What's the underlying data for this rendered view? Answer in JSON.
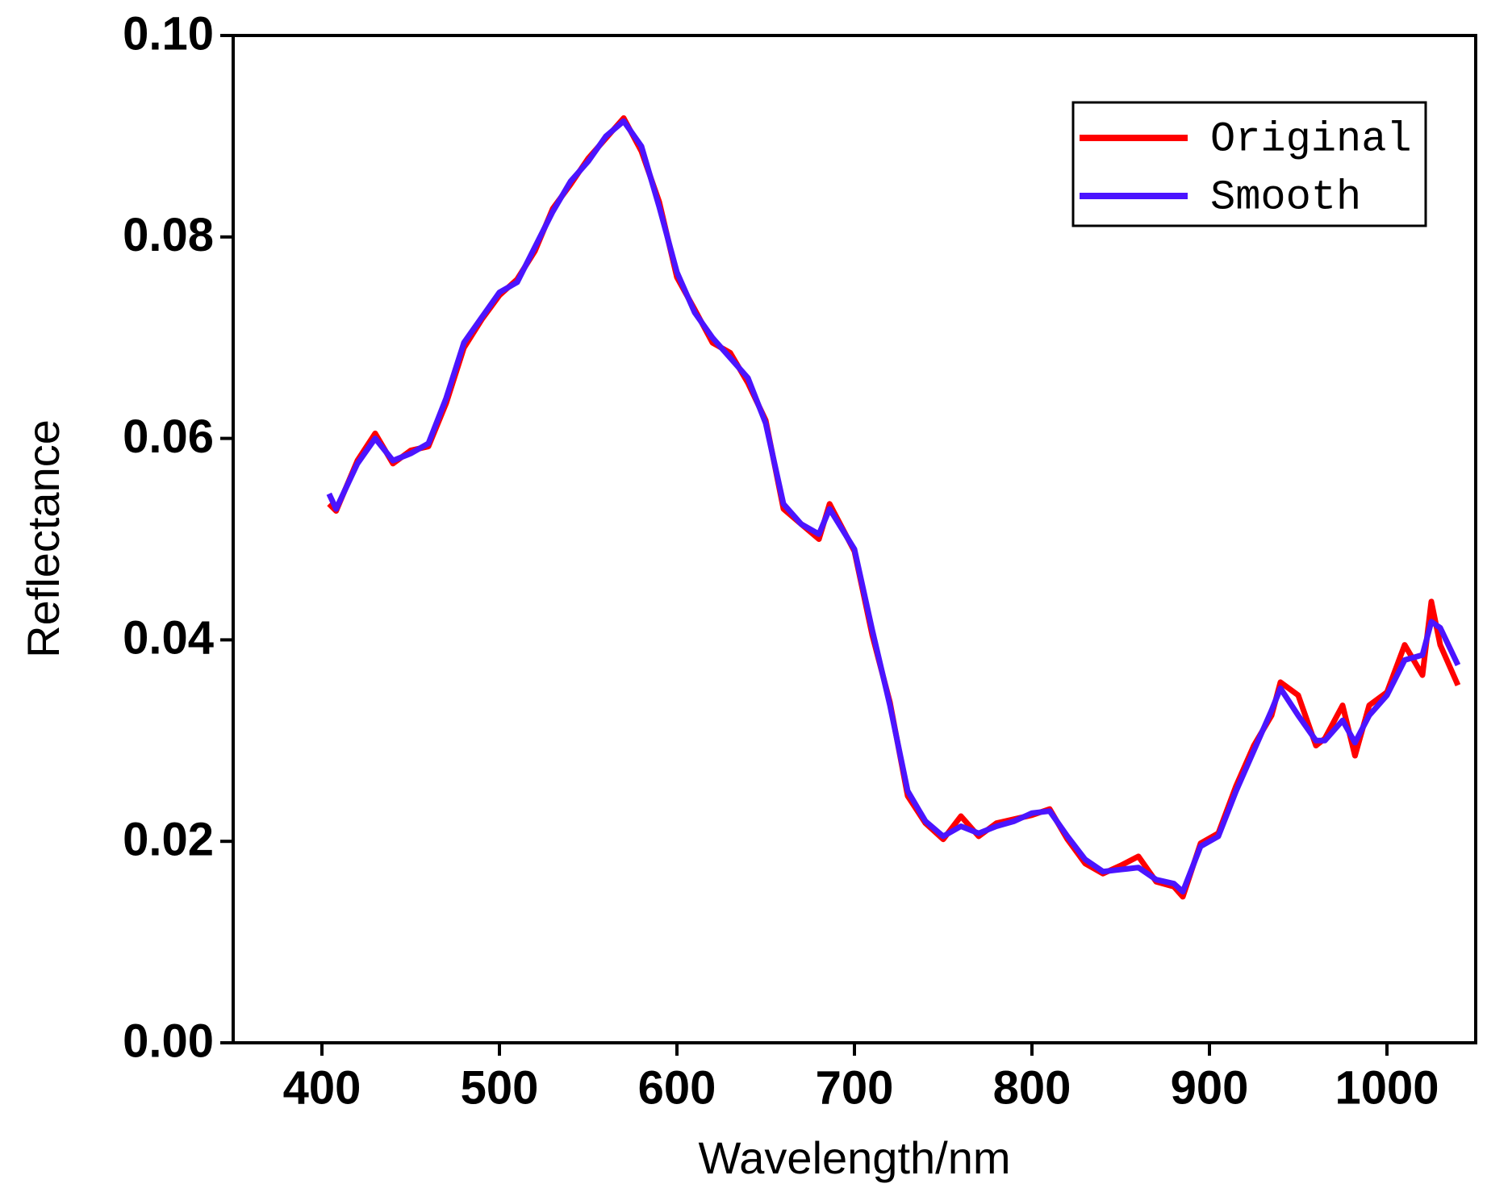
{
  "chart_data": {
    "type": "line",
    "x_label": "Wavelength/nm",
    "y_label": "Reflectance",
    "x": [
      404,
      408,
      420,
      430,
      440,
      450,
      460,
      470,
      480,
      490,
      500,
      510,
      520,
      530,
      540,
      550,
      560,
      570,
      580,
      590,
      600,
      610,
      620,
      630,
      640,
      650,
      660,
      670,
      680,
      686,
      700,
      710,
      720,
      730,
      740,
      750,
      760,
      770,
      780,
      790,
      800,
      810,
      820,
      830,
      840,
      850,
      860,
      870,
      880,
      885,
      895,
      905,
      915,
      925,
      935,
      940,
      950,
      960,
      965,
      975,
      982,
      990,
      1000,
      1010,
      1020,
      1025,
      1030,
      1040
    ],
    "series": [
      {
        "name": "Original",
        "color": "#ff0000",
        "values": [
          0.0535,
          0.0528,
          0.0578,
          0.0605,
          0.0575,
          0.0588,
          0.0592,
          0.0635,
          0.069,
          0.0718,
          0.0742,
          0.0758,
          0.0786,
          0.0828,
          0.0852,
          0.0878,
          0.0898,
          0.0918,
          0.0885,
          0.0835,
          0.076,
          0.0728,
          0.0695,
          0.0685,
          0.0655,
          0.0618,
          0.053,
          0.0515,
          0.05,
          0.0535,
          0.0488,
          0.0405,
          0.0338,
          0.0245,
          0.0218,
          0.0202,
          0.0225,
          0.0205,
          0.0218,
          0.0222,
          0.0226,
          0.0232,
          0.0202,
          0.0178,
          0.0168,
          0.0176,
          0.0185,
          0.016,
          0.0155,
          0.0145,
          0.0198,
          0.0208,
          0.0255,
          0.0295,
          0.0325,
          0.0358,
          0.0345,
          0.0295,
          0.0302,
          0.0335,
          0.0285,
          0.0335,
          0.0348,
          0.0395,
          0.0365,
          0.0438,
          0.0395,
          0.0355
        ]
      },
      {
        "name": "Smooth",
        "color": "#4b14ff",
        "values": [
          0.0545,
          0.053,
          0.0575,
          0.06,
          0.0578,
          0.0585,
          0.0595,
          0.064,
          0.0695,
          0.072,
          0.0745,
          0.0755,
          0.079,
          0.0825,
          0.0855,
          0.0875,
          0.09,
          0.0915,
          0.089,
          0.083,
          0.0765,
          0.0725,
          0.07,
          0.068,
          0.066,
          0.0615,
          0.0535,
          0.0515,
          0.0505,
          0.053,
          0.049,
          0.041,
          0.0335,
          0.025,
          0.022,
          0.0205,
          0.0215,
          0.0208,
          0.0215,
          0.022,
          0.0228,
          0.023,
          0.0205,
          0.0182,
          0.017,
          0.0172,
          0.0174,
          0.0162,
          0.0158,
          0.015,
          0.0195,
          0.0205,
          0.025,
          0.029,
          0.033,
          0.0352,
          0.0325,
          0.03,
          0.03,
          0.032,
          0.0298,
          0.0325,
          0.0345,
          0.038,
          0.0385,
          0.0418,
          0.0412,
          0.0375
        ]
      }
    ],
    "xlim": [
      350,
      1050
    ],
    "xticks": [
      400,
      500,
      600,
      700,
      800,
      900,
      {
        "value": 1000,
        "label": "1000"
      }
    ],
    "ylim": [
      0,
      0.1
    ],
    "yticks": [
      {
        "value": 0,
        "label": "0.00"
      },
      0.02,
      0.04,
      0.06,
      0.08,
      {
        "value": 0.1,
        "label": "0.10"
      }
    ],
    "legend": "upper right"
  }
}
